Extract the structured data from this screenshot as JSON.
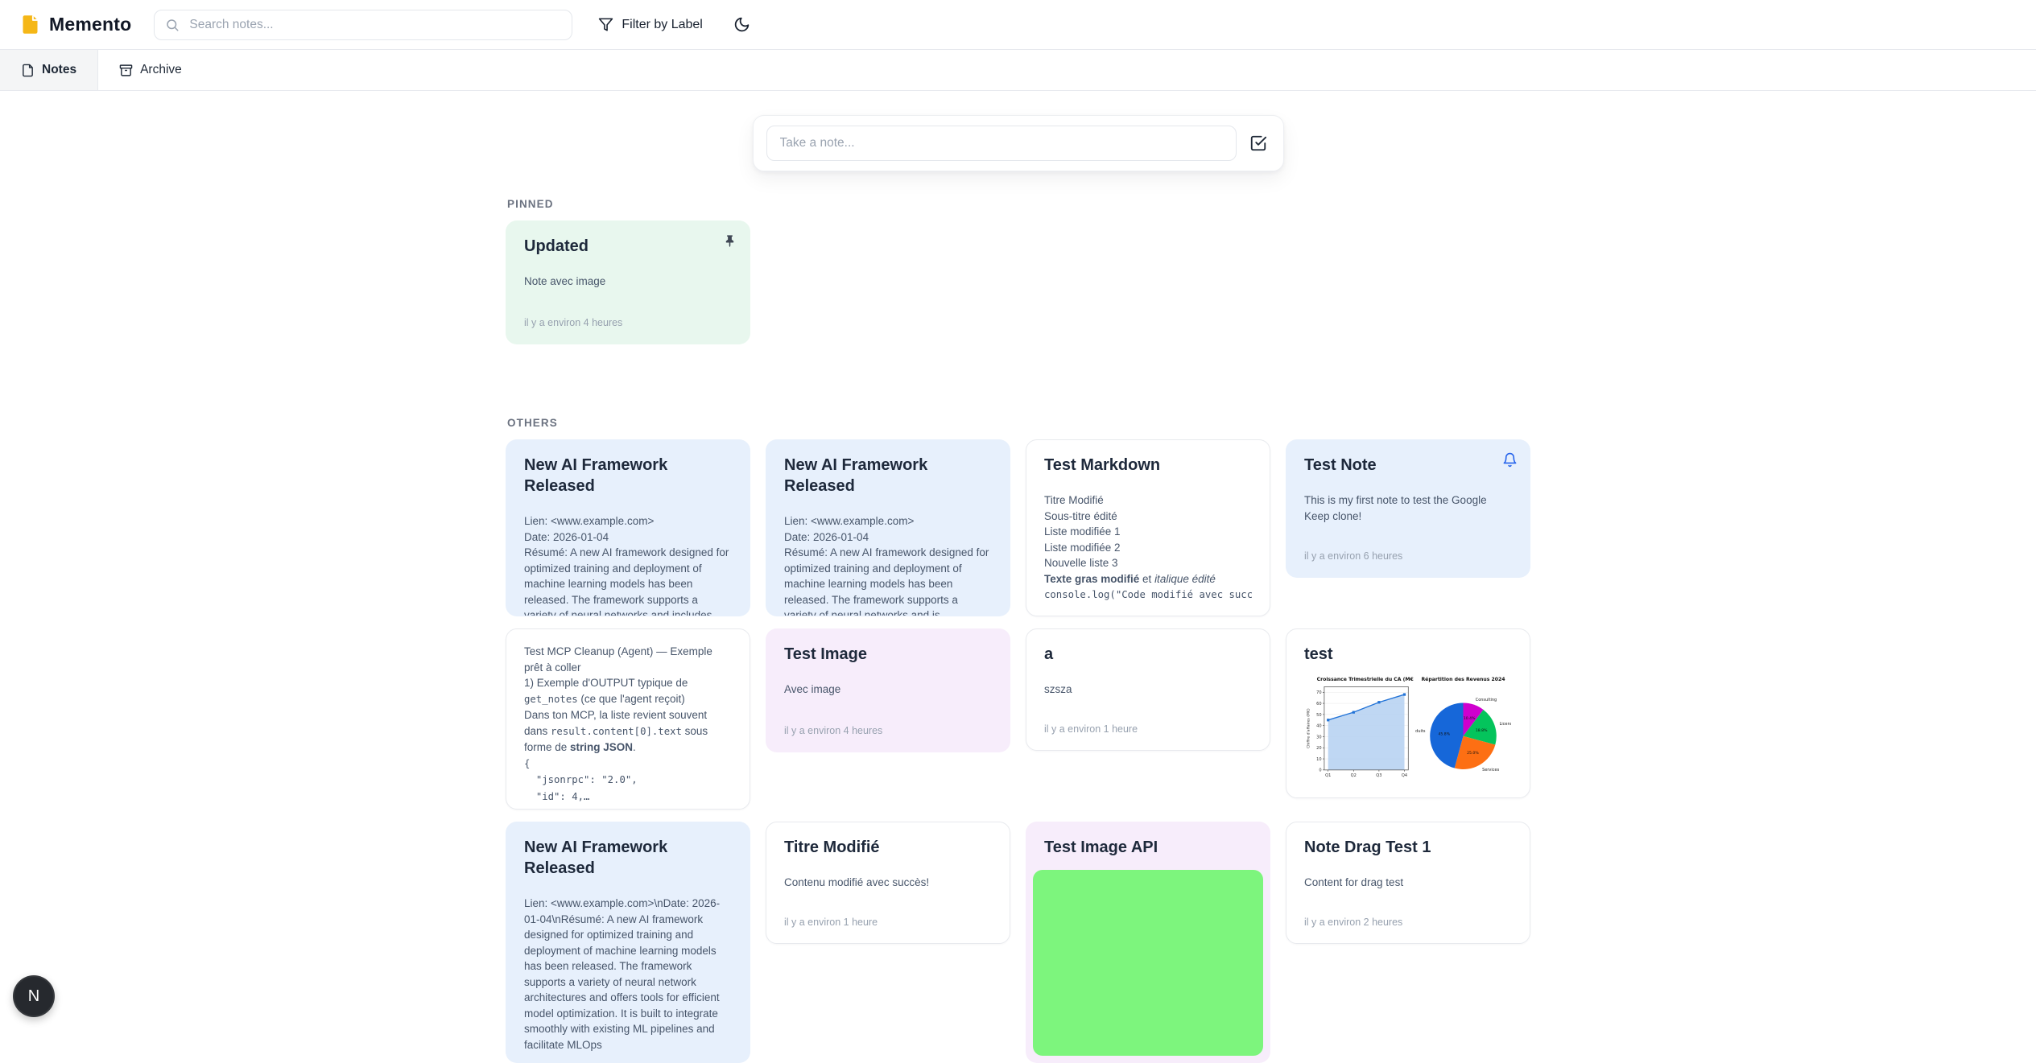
{
  "colors": {
    "logo_yellow": "#f5b717",
    "accent_blue": "#2563eb",
    "note_green": "#e8f7ee",
    "note_blue": "#e7f0fc",
    "note_lavender": "#f7edfb",
    "image_green": "#7df57d"
  },
  "header": {
    "app_name": "Memento",
    "search_placeholder": "Search notes...",
    "filter_label": "Filter by Label"
  },
  "tabs": {
    "notes": "Notes",
    "archive": "Archive"
  },
  "composer": {
    "placeholder": "Take a note..."
  },
  "sections": {
    "pinned": "PINNED",
    "others": "OTHERS"
  },
  "avatar": {
    "initial": "N"
  },
  "notes": {
    "updated": {
      "title": "Updated",
      "body": "Note avec image",
      "timestamp": "il y a environ 4 heures"
    },
    "ai_a": {
      "title": "New AI Framework Released",
      "body_lines": [
        "Lien: <www.example.com>",
        "Date: 2026-01-04",
        "Résumé: A new AI framework designed for optimized training and deployment of machine learning models has been released. The framework supports a variety of neural networks and includes features that enhance computational"
      ]
    },
    "ai_b": {
      "title": "New AI Framework Released",
      "body_lines": [
        "Lien: <www.example.com>",
        "Date: 2026-01-04",
        "Résumé: A new AI framework designed for optimized training and deployment of machine learning models has been released. The framework supports a variety of neural networks and is engineered for performance and"
      ]
    },
    "markdown": {
      "title": "Test Markdown",
      "rich": [
        [
          {
            "t": "Titre Modifié"
          }
        ],
        [
          {
            "t": "Sous-titre édité"
          }
        ],
        [
          {
            "t": "Liste modifiée 1"
          }
        ],
        [
          {
            "t": "Liste modifiée 2"
          }
        ],
        [
          {
            "t": "Nouvelle liste 3"
          }
        ],
        [
          {
            "t": "Texte gras modifié",
            "s": "b"
          },
          {
            "t": " et "
          },
          {
            "t": "italique édité",
            "s": "i"
          }
        ],
        [
          {
            "t": "console.log(\"Code modifié avec succè",
            "s": "m nw"
          }
        ]
      ]
    },
    "test_note": {
      "title": "Test Note",
      "body": "This is my first note to test the Google Keep clone!",
      "timestamp": "il y a environ 6 heures"
    },
    "mcp": {
      "rich": [
        [
          {
            "t": "Test MCP Cleanup (Agent) — Exemple prêt à coller"
          }
        ],
        [
          {
            "t": "1) Exemple d'OUTPUT typique de "
          },
          {
            "t": "get_notes",
            "s": "m"
          },
          {
            "t": " (ce que l'agent reçoit)"
          }
        ],
        [
          {
            "t": "Dans ton MCP, la liste revient souvent dans "
          },
          {
            "t": "result.content[0].text",
            "s": "m"
          },
          {
            "t": " sous forme de "
          },
          {
            "t": "string JSON",
            "s": "b"
          },
          {
            "t": "."
          }
        ],
        [
          {
            "t": "{",
            "s": "m"
          }
        ],
        [
          {
            "t": "  \"jsonrpc\": \"2.0\",",
            "s": "m"
          }
        ],
        [
          {
            "t": "  \"id\": 4,…",
            "s": "m"
          }
        ]
      ]
    },
    "test_image": {
      "title": "Test Image",
      "body": "Avec image",
      "timestamp": "il y a environ 4 heures"
    },
    "a_note": {
      "title": "a",
      "body": "szsza",
      "timestamp": "il y a environ 1 heure"
    },
    "test_charts": {
      "title": "test"
    },
    "ai_c": {
      "title": "New AI Framework Released",
      "body_lines": [
        "Lien: <www.example.com>\\nDate: 2026-01-04\\nRésumé: A new AI framework designed for optimized training and deployment of machine learning models has been released. The framework supports a variety of neural network architectures and offers tools for efficient model optimization. It is built to integrate smoothly with existing ML pipelines and facilitate MLOps"
      ]
    },
    "titre": {
      "title": "Titre Modifié",
      "body": "Contenu modifié avec succès!",
      "timestamp": "il y a environ 1 heure"
    },
    "image_api": {
      "title": "Test Image API"
    },
    "drag": {
      "title": "Note Drag Test 1",
      "body": "Content for drag test",
      "timestamp": "il y a environ 2 heures"
    }
  },
  "chart_data": [
    {
      "type": "area",
      "title": "Croissance Trimestrielle du CA (M€)",
      "ylabel": "Chiffre d'affaires (M€)",
      "categories": [
        "Q1",
        "Q2",
        "Q3",
        "Q4"
      ],
      "values": [
        45,
        52,
        61,
        68
      ],
      "ylim": [
        0,
        75
      ],
      "yticks": [
        0,
        10,
        20,
        30,
        40,
        50,
        60,
        70
      ],
      "grid": true,
      "line_color": "#2273d7",
      "fill_color": "#b8d3f2"
    },
    {
      "type": "pie",
      "title": "Répartition des Revenus 2024",
      "slices": [
        {
          "label": "Consulting",
          "value": 10.4,
          "color": "#cf00ce"
        },
        {
          "label": "Licences",
          "value": 18.8,
          "color": "#04c45c"
        },
        {
          "label": "Services",
          "value": 25.0,
          "color": "#fd6f13"
        },
        {
          "label": "Produits",
          "value": 45.8,
          "color": "#1667d9"
        }
      ]
    }
  ]
}
